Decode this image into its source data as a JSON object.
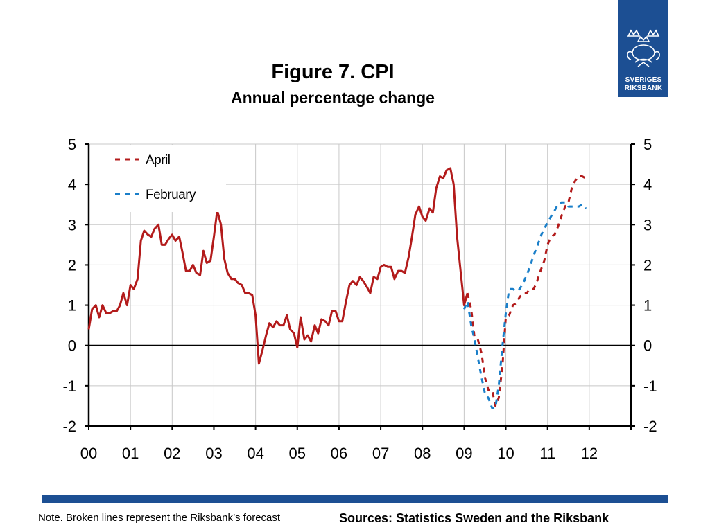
{
  "logo": {
    "line1": "SVERIGES",
    "line2": "RIKSBANK",
    "emblem": "riksbank-crest-icon"
  },
  "chart_data": {
    "type": "line",
    "title": "Figure 7. CPI",
    "subtitle": "Annual percentage change",
    "x_ticks": [
      "00",
      "01",
      "02",
      "03",
      "04",
      "05",
      "06",
      "07",
      "08",
      "09",
      "10",
      "11",
      "12"
    ],
    "y_ticks": [
      "5",
      "4",
      "3",
      "2",
      "1",
      "0",
      "-1",
      "-2"
    ],
    "ylim": [
      -2,
      5
    ],
    "xlim": [
      0,
      13
    ],
    "grid": true,
    "legend_position": "top-left",
    "colors": {
      "outcome": "#b31b1b",
      "april": "#b31b1b",
      "february": "#1a7fc9"
    },
    "series": [
      {
        "key": "outcome",
        "style": "solid",
        "points": [
          [
            0.0,
            0.4
          ],
          [
            0.08,
            0.9
          ],
          [
            0.17,
            1.0
          ],
          [
            0.25,
            0.7
          ],
          [
            0.33,
            1.0
          ],
          [
            0.42,
            0.8
          ],
          [
            0.5,
            0.8
          ],
          [
            0.58,
            0.85
          ],
          [
            0.67,
            0.85
          ],
          [
            0.75,
            1.0
          ],
          [
            0.83,
            1.3
          ],
          [
            0.92,
            1.0
          ],
          [
            1.0,
            1.5
          ],
          [
            1.08,
            1.4
          ],
          [
            1.17,
            1.65
          ],
          [
            1.25,
            2.6
          ],
          [
            1.33,
            2.85
          ],
          [
            1.42,
            2.75
          ],
          [
            1.5,
            2.7
          ],
          [
            1.58,
            2.9
          ],
          [
            1.67,
            3.0
          ],
          [
            1.75,
            2.5
          ],
          [
            1.83,
            2.5
          ],
          [
            1.92,
            2.65
          ],
          [
            2.0,
            2.75
          ],
          [
            2.08,
            2.6
          ],
          [
            2.17,
            2.7
          ],
          [
            2.25,
            2.3
          ],
          [
            2.33,
            1.85
          ],
          [
            2.42,
            1.85
          ],
          [
            2.5,
            2.0
          ],
          [
            2.58,
            1.8
          ],
          [
            2.67,
            1.75
          ],
          [
            2.75,
            2.35
          ],
          [
            2.83,
            2.05
          ],
          [
            2.92,
            2.1
          ],
          [
            3.0,
            2.7
          ],
          [
            3.08,
            3.35
          ],
          [
            3.17,
            3.0
          ],
          [
            3.25,
            2.15
          ],
          [
            3.33,
            1.8
          ],
          [
            3.42,
            1.65
          ],
          [
            3.5,
            1.65
          ],
          [
            3.58,
            1.55
          ],
          [
            3.67,
            1.5
          ],
          [
            3.75,
            1.3
          ],
          [
            3.83,
            1.3
          ],
          [
            3.92,
            1.25
          ],
          [
            4.0,
            0.75
          ],
          [
            4.08,
            -0.45
          ],
          [
            4.17,
            -0.1
          ],
          [
            4.25,
            0.25
          ],
          [
            4.33,
            0.55
          ],
          [
            4.42,
            0.45
          ],
          [
            4.5,
            0.6
          ],
          [
            4.58,
            0.5
          ],
          [
            4.67,
            0.5
          ],
          [
            4.75,
            0.75
          ],
          [
            4.83,
            0.4
          ],
          [
            4.92,
            0.3
          ],
          [
            5.0,
            -0.05
          ],
          [
            5.08,
            0.7
          ],
          [
            5.17,
            0.15
          ],
          [
            5.25,
            0.25
          ],
          [
            5.33,
            0.1
          ],
          [
            5.42,
            0.5
          ],
          [
            5.5,
            0.3
          ],
          [
            5.58,
            0.65
          ],
          [
            5.67,
            0.6
          ],
          [
            5.75,
            0.5
          ],
          [
            5.83,
            0.85
          ],
          [
            5.92,
            0.85
          ],
          [
            6.0,
            0.6
          ],
          [
            6.08,
            0.6
          ],
          [
            6.17,
            1.1
          ],
          [
            6.25,
            1.5
          ],
          [
            6.33,
            1.6
          ],
          [
            6.42,
            1.5
          ],
          [
            6.5,
            1.7
          ],
          [
            6.58,
            1.6
          ],
          [
            6.67,
            1.45
          ],
          [
            6.75,
            1.3
          ],
          [
            6.83,
            1.7
          ],
          [
            6.92,
            1.65
          ],
          [
            7.0,
            1.95
          ],
          [
            7.08,
            2.0
          ],
          [
            7.17,
            1.95
          ],
          [
            7.25,
            1.95
          ],
          [
            7.33,
            1.65
          ],
          [
            7.42,
            1.85
          ],
          [
            7.5,
            1.85
          ],
          [
            7.58,
            1.8
          ],
          [
            7.67,
            2.2
          ],
          [
            7.75,
            2.7
          ],
          [
            7.83,
            3.25
          ],
          [
            7.92,
            3.45
          ],
          [
            8.0,
            3.2
          ],
          [
            8.08,
            3.1
          ],
          [
            8.17,
            3.4
          ],
          [
            8.25,
            3.3
          ],
          [
            8.33,
            3.9
          ],
          [
            8.42,
            4.2
          ],
          [
            8.5,
            4.15
          ],
          [
            8.58,
            4.35
          ],
          [
            8.67,
            4.4
          ],
          [
            8.75,
            4.0
          ],
          [
            8.83,
            2.7
          ],
          [
            8.92,
            1.8
          ],
          [
            9.0,
            1.0
          ],
          [
            9.08,
            1.3
          ]
        ]
      },
      {
        "key": "april",
        "style": "dashed",
        "points": [
          [
            9.08,
            1.3
          ],
          [
            9.17,
            0.9
          ],
          [
            9.25,
            0.2
          ],
          [
            9.33,
            0.15
          ],
          [
            9.42,
            -0.2
          ],
          [
            9.5,
            -0.8
          ],
          [
            9.58,
            -1.1
          ],
          [
            9.67,
            -1.1
          ],
          [
            9.75,
            -1.5
          ],
          [
            9.83,
            -1.3
          ],
          [
            9.92,
            -0.5
          ],
          [
            10.0,
            0.7
          ],
          [
            10.08,
            0.75
          ],
          [
            10.17,
            1.0
          ],
          [
            10.25,
            1.05
          ],
          [
            10.33,
            1.2
          ],
          [
            10.42,
            1.3
          ],
          [
            10.5,
            1.3
          ],
          [
            10.58,
            1.4
          ],
          [
            10.67,
            1.4
          ],
          [
            10.75,
            1.6
          ],
          [
            10.83,
            1.85
          ],
          [
            10.92,
            2.1
          ],
          [
            11.0,
            2.5
          ],
          [
            11.08,
            2.7
          ],
          [
            11.17,
            2.75
          ],
          [
            11.25,
            2.95
          ],
          [
            11.33,
            3.2
          ],
          [
            11.42,
            3.45
          ],
          [
            11.5,
            3.55
          ],
          [
            11.58,
            3.9
          ],
          [
            11.67,
            4.1
          ],
          [
            11.75,
            4.2
          ],
          [
            11.83,
            4.2
          ],
          [
            11.92,
            4.15
          ]
        ]
      },
      {
        "key": "february",
        "style": "dashed",
        "points": [
          [
            9.0,
            0.9
          ],
          [
            9.08,
            1.1
          ],
          [
            9.17,
            0.5
          ],
          [
            9.25,
            0.15
          ],
          [
            9.33,
            -0.3
          ],
          [
            9.42,
            -0.8
          ],
          [
            9.5,
            -1.2
          ],
          [
            9.58,
            -1.3
          ],
          [
            9.67,
            -1.55
          ],
          [
            9.75,
            -1.55
          ],
          [
            9.83,
            -1.0
          ],
          [
            9.92,
            0.0
          ],
          [
            10.0,
            0.8
          ],
          [
            10.08,
            1.4
          ],
          [
            10.17,
            1.4
          ],
          [
            10.25,
            1.35
          ],
          [
            10.33,
            1.4
          ],
          [
            10.42,
            1.55
          ],
          [
            10.5,
            1.75
          ],
          [
            10.58,
            1.95
          ],
          [
            10.67,
            2.25
          ],
          [
            10.75,
            2.45
          ],
          [
            10.83,
            2.7
          ],
          [
            10.92,
            2.9
          ],
          [
            11.0,
            3.05
          ],
          [
            11.08,
            3.2
          ],
          [
            11.17,
            3.35
          ],
          [
            11.25,
            3.5
          ],
          [
            11.33,
            3.55
          ],
          [
            11.42,
            3.55
          ],
          [
            11.5,
            3.45
          ],
          [
            11.58,
            3.45
          ],
          [
            11.67,
            3.45
          ],
          [
            11.75,
            3.45
          ],
          [
            11.83,
            3.5
          ],
          [
            11.92,
            3.4
          ]
        ]
      }
    ],
    "legend": [
      {
        "key": "april",
        "label": "April"
      },
      {
        "key": "february",
        "label": "February"
      }
    ]
  },
  "note": "Note. Broken lines represent the Riksbank’s forecast",
  "sources": "Sources: Statistics Sweden and the Riksbank"
}
